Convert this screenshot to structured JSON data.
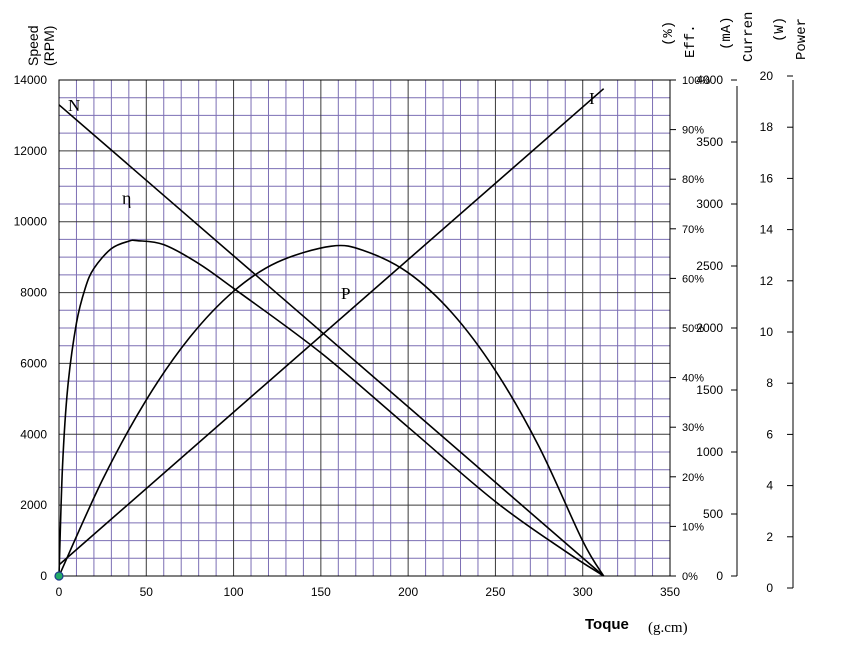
{
  "chart_data": {
    "type": "line",
    "x_axis": {
      "label": "Toque",
      "unit": "(g.cm)",
      "range": [
        0,
        350
      ],
      "ticks": [
        0,
        50,
        100,
        150,
        200,
        250,
        300,
        350
      ]
    },
    "left_axis": {
      "label_line1": "Speed",
      "label_line2": "(RPM)",
      "range": [
        0,
        14000
      ],
      "ticks": [
        0,
        2000,
        4000,
        6000,
        8000,
        10000,
        12000,
        14000
      ]
    },
    "eff_axis": {
      "label_line1": "Eff.",
      "label_line2": "(%)",
      "range": [
        0,
        100
      ],
      "ticks": [
        "0%",
        "10%",
        "20%",
        "30%",
        "40%",
        "50%",
        "60%",
        "70%",
        "80%",
        "90%",
        "100%"
      ]
    },
    "current_axis": {
      "label_line1": "Curren",
      "label_line2": "(mA)",
      "range": [
        0,
        4000
      ],
      "ticks": [
        0,
        500,
        1000,
        1500,
        2000,
        2500,
        3000,
        3500,
        4000
      ]
    },
    "power_axis": {
      "label_line1": "Power",
      "label_line2": "(W)",
      "range": [
        0,
        20
      ],
      "ticks": [
        0,
        2,
        4,
        6,
        8,
        10,
        12,
        14,
        16,
        18,
        20
      ]
    },
    "grid": true,
    "series": [
      {
        "name": "N",
        "axis": "speed",
        "x": [
          0,
          312
        ],
        "y": [
          13300,
          0
        ]
      },
      {
        "name": "I",
        "axis": "current",
        "x": [
          0,
          312
        ],
        "y": [
          90,
          3930
        ]
      },
      {
        "name": "P",
        "axis": "power",
        "x": [
          0,
          25,
          50,
          75,
          100,
          125,
          156,
          175,
          200,
          225,
          250,
          275,
          300,
          312
        ],
        "y": [
          0,
          3.89,
          7.1,
          9.63,
          11.48,
          12.65,
          13.3,
          13.11,
          12.23,
          10.62,
          8.28,
          5.21,
          1.41,
          0
        ]
      },
      {
        "name": "η",
        "axis": "eff",
        "x": [
          0,
          2,
          5,
          10,
          15,
          20,
          30,
          40,
          45,
          60,
          80,
          100,
          150,
          200,
          250,
          290,
          312
        ],
        "y": [
          0,
          22,
          38,
          51,
          58,
          62,
          66,
          67.5,
          67.6,
          66.8,
          63,
          58,
          45,
          30,
          15,
          5,
          0
        ]
      }
    ]
  }
}
